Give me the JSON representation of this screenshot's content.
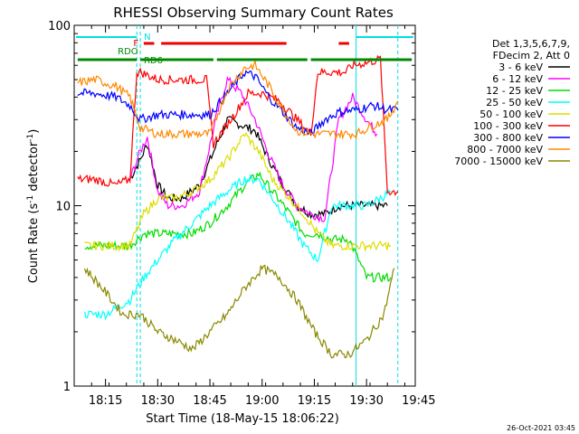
{
  "chart_data": {
    "type": "line",
    "title": "RHESSI Observing Summary Count Rates",
    "xlabel": "Start Time (18-May-15 18:06:22)",
    "ylabel_main": "Count Rate (s",
    "ylabel_sup": "-1",
    "ylabel_mid": " detector",
    "ylabel_sup2": "-1",
    "ylabel_end": ")",
    "yscale": "log",
    "ylim": [
      1,
      100
    ],
    "xlim": [
      "18:06",
      "19:44"
    ],
    "y_ticks": [
      "1",
      "10",
      "100"
    ],
    "x_ticks": [
      "18:15",
      "18:30",
      "18:45",
      "19:00",
      "19:15",
      "19:30",
      "19:45"
    ],
    "legend_header": [
      "Det 1,3,5,6,7,9,",
      "FDecim 2, Att 0"
    ],
    "timestamp": "26-Oct-2021 03:45",
    "flags": {
      "N": "N",
      "F": "F",
      "RDO": "RDO",
      "RD6": "RD6"
    },
    "series": [
      {
        "name": "3 - 6 keV",
        "color": "#000000",
        "x": [
          "18:22",
          "18:25",
          "18:27",
          "18:30",
          "18:33",
          "18:37",
          "18:42",
          "18:47",
          "18:50",
          "18:54",
          "18:58",
          "19:02",
          "19:06",
          "19:10",
          "19:14",
          "19:18",
          "19:22",
          "19:28",
          "19:32",
          "19:36"
        ],
        "y": [
          14,
          18,
          22,
          13,
          11,
          11,
          13,
          22,
          30,
          28,
          26,
          18,
          13,
          10,
          9,
          9,
          10,
          10,
          10,
          10
        ]
      },
      {
        "name": "6 - 12 keV",
        "color": "#ff00ff",
        "x": [
          "18:22",
          "18:25",
          "18:27",
          "18:30",
          "18:33",
          "18:37",
          "18:42",
          "18:47",
          "18:50",
          "18:54",
          "18:58",
          "19:02",
          "19:06",
          "19:10",
          "19:14",
          "19:18",
          "19:22",
          "19:26",
          "19:30",
          "19:33"
        ],
        "y": [
          14,
          20,
          24,
          12,
          10,
          10,
          12,
          32,
          50,
          42,
          30,
          19,
          13,
          10,
          9,
          8.5,
          30,
          40,
          30,
          25
        ]
      },
      {
        "name": "12 - 25 keV",
        "color": "#00dd00",
        "x": [
          "18:09",
          "18:15",
          "18:22",
          "18:26",
          "18:30",
          "18:35",
          "18:40",
          "18:45",
          "18:50",
          "18:55",
          "18:59",
          "19:03",
          "19:08",
          "19:12",
          "19:16",
          "19:20",
          "19:25",
          "19:30",
          "19:34",
          "19:37"
        ],
        "y": [
          6,
          6,
          6,
          7,
          7,
          7,
          7,
          8,
          10,
          13,
          15,
          12,
          9,
          7,
          7,
          6.5,
          6.5,
          4,
          4,
          4
        ]
      },
      {
        "name": "25 - 50 keV",
        "color": "#00ffff",
        "x": [
          "18:09",
          "18:15",
          "18:22",
          "18:26",
          "18:30",
          "18:35",
          "18:40",
          "18:45",
          "18:50",
          "18:55",
          "18:59",
          "19:03",
          "19:08",
          "19:12",
          "19:16",
          "19:20",
          "19:25",
          "19:30",
          "19:34",
          "19:37"
        ],
        "y": [
          2.5,
          2.5,
          3,
          4,
          5,
          6.5,
          8,
          10,
          12,
          14,
          14,
          11,
          8,
          6,
          5,
          10,
          10,
          10,
          11,
          12
        ]
      },
      {
        "name": "50 - 100 keV",
        "color": "#dddd00",
        "x": [
          "18:09",
          "18:15",
          "18:22",
          "18:26",
          "18:30",
          "18:35",
          "18:40",
          "18:45",
          "18:50",
          "18:55",
          "18:59",
          "19:03",
          "19:08",
          "19:12",
          "19:16",
          "19:20",
          "19:25",
          "19:30",
          "19:34",
          "19:37"
        ],
        "y": [
          6,
          6,
          6,
          9,
          11,
          11,
          12,
          14,
          18,
          25,
          20,
          14,
          11,
          9,
          7,
          6,
          6,
          6,
          6,
          6
        ]
      },
      {
        "name": "100 - 300 keV",
        "color": "#ff0000",
        "x": [
          "18:07",
          "18:12",
          "18:18",
          "18:22",
          "18:24",
          "18:25",
          "18:30",
          "18:35",
          "18:40",
          "18:44",
          "18:46",
          "18:52",
          "18:56",
          "19:00",
          "19:05",
          "19:10",
          "19:14",
          "19:16",
          "19:24",
          "19:26",
          "19:30",
          "19:34",
          "19:36",
          "19:39"
        ],
        "y": [
          14,
          14,
          13,
          14,
          55,
          55,
          50,
          50,
          50,
          50,
          22,
          32,
          42,
          42,
          38,
          30,
          25,
          55,
          55,
          60,
          62,
          65,
          12,
          12
        ]
      },
      {
        "name": "300 - 800 keV",
        "color": "#0000ff",
        "x": [
          "18:07",
          "18:12",
          "18:18",
          "18:22",
          "18:25",
          "18:30",
          "18:35",
          "18:40",
          "18:45",
          "18:50",
          "18:55",
          "18:58",
          "19:02",
          "19:06",
          "19:10",
          "19:14",
          "19:18",
          "19:22",
          "19:27",
          "19:32",
          "19:36",
          "19:39"
        ],
        "y": [
          42,
          42,
          40,
          36,
          30,
          32,
          32,
          32,
          32,
          42,
          55,
          52,
          40,
          33,
          27,
          25,
          30,
          33,
          34,
          36,
          34,
          34
        ]
      },
      {
        "name": "800 - 7000 keV",
        "color": "#ff8800",
        "x": [
          "18:07",
          "18:12",
          "18:18",
          "18:22",
          "18:25",
          "18:30",
          "18:35",
          "18:40",
          "18:45",
          "18:50",
          "18:55",
          "18:58",
          "19:02",
          "19:06",
          "19:10",
          "19:14",
          "19:18",
          "19:22",
          "19:27",
          "19:32",
          "19:36",
          "19:39"
        ],
        "y": [
          48,
          50,
          46,
          40,
          27,
          25,
          25,
          25,
          25,
          44,
          58,
          60,
          46,
          34,
          26,
          25,
          25,
          25,
          25,
          28,
          30,
          38
        ]
      },
      {
        "name": "7000 - 15000 keV",
        "color": "#888800",
        "x": [
          "18:09",
          "18:14",
          "18:20",
          "18:25",
          "18:30",
          "18:35",
          "18:40",
          "18:45",
          "18:50",
          "18:55",
          "19:00",
          "19:05",
          "19:10",
          "19:15",
          "19:20",
          "19:25",
          "19:30",
          "19:35",
          "19:38"
        ],
        "y": [
          4.5,
          3.5,
          2.5,
          2.5,
          2.0,
          1.8,
          1.6,
          2.0,
          2.5,
          3.5,
          4.5,
          4.0,
          3.0,
          2.0,
          1.5,
          1.5,
          1.8,
          2.5,
          4.5
        ]
      }
    ]
  }
}
